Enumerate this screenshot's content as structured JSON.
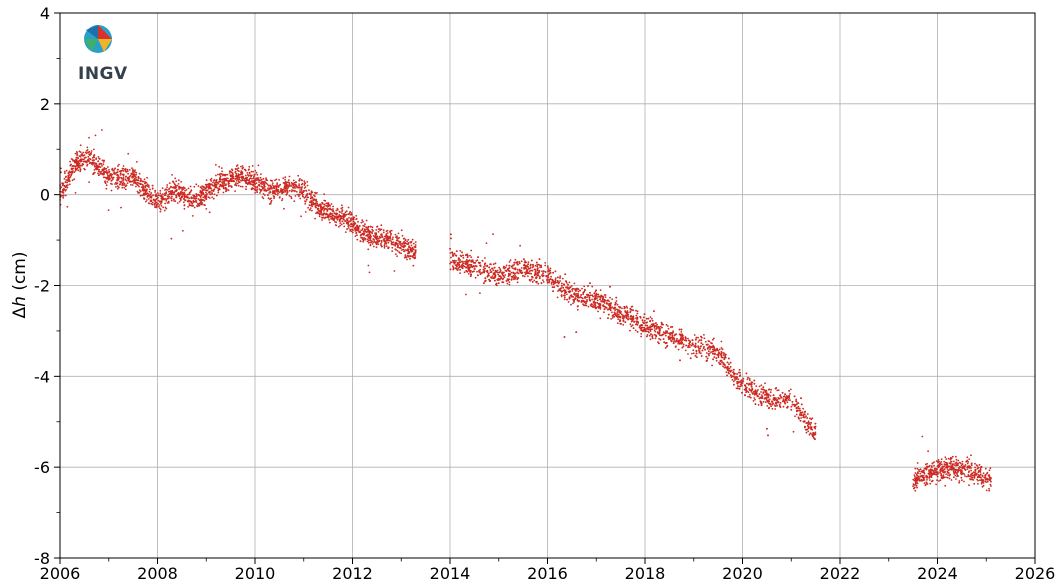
{
  "logo": {
    "text": "INGV"
  },
  "chart_data": {
    "type": "scatter",
    "title": "",
    "xlabel": "",
    "ylabel_prefix": "Δ",
    "ylabel_var": "h",
    "ylabel_unit": " (cm)",
    "xlim": [
      2006,
      2026
    ],
    "ylim": [
      -8,
      4
    ],
    "xticks": [
      2006,
      2008,
      2010,
      2012,
      2014,
      2016,
      2018,
      2020,
      2022,
      2024,
      2026
    ],
    "yticks": [
      4,
      2,
      0,
      -2,
      -4,
      -6,
      -8
    ],
    "grid": true,
    "marker_color": "#cc2a22",
    "series": [
      {
        "segments": [
          {
            "start": 2006.0,
            "end": 2013.3,
            "trend": [
              [
                2006.0,
                0.0
              ],
              [
                2006.3,
                0.7
              ],
              [
                2006.6,
                0.8
              ],
              [
                2007.0,
                0.4
              ],
              [
                2007.5,
                0.4
              ],
              [
                2008.0,
                -0.2
              ],
              [
                2008.3,
                0.1
              ],
              [
                2008.8,
                -0.1
              ],
              [
                2009.3,
                0.3
              ],
              [
                2009.8,
                0.4
              ],
              [
                2010.3,
                0.1
              ],
              [
                2010.9,
                0.2
              ],
              [
                2011.3,
                -0.3
              ],
              [
                2011.8,
                -0.5
              ],
              [
                2012.3,
                -0.9
              ],
              [
                2012.8,
                -1.0
              ],
              [
                2013.3,
                -1.3
              ]
            ]
          },
          {
            "start": 2014.0,
            "end": 2021.5,
            "trend": [
              [
                2014.0,
                -1.4
              ],
              [
                2014.5,
                -1.6
              ],
              [
                2015.0,
                -1.8
              ],
              [
                2015.5,
                -1.6
              ],
              [
                2016.0,
                -1.8
              ],
              [
                2016.5,
                -2.2
              ],
              [
                2017.0,
                -2.3
              ],
              [
                2017.5,
                -2.6
              ],
              [
                2018.0,
                -2.9
              ],
              [
                2018.5,
                -3.1
              ],
              [
                2019.0,
                -3.3
              ],
              [
                2019.5,
                -3.5
              ],
              [
                2020.0,
                -4.2
              ],
              [
                2020.5,
                -4.5
              ],
              [
                2021.0,
                -4.5
              ],
              [
                2021.5,
                -5.3
              ]
            ]
          },
          {
            "start": 2023.5,
            "end": 2025.1,
            "trend": [
              [
                2023.5,
                -6.3
              ],
              [
                2023.9,
                -6.1
              ],
              [
                2024.3,
                -6.0
              ],
              [
                2024.7,
                -6.1
              ],
              [
                2025.1,
                -6.3
              ]
            ]
          }
        ]
      }
    ]
  }
}
